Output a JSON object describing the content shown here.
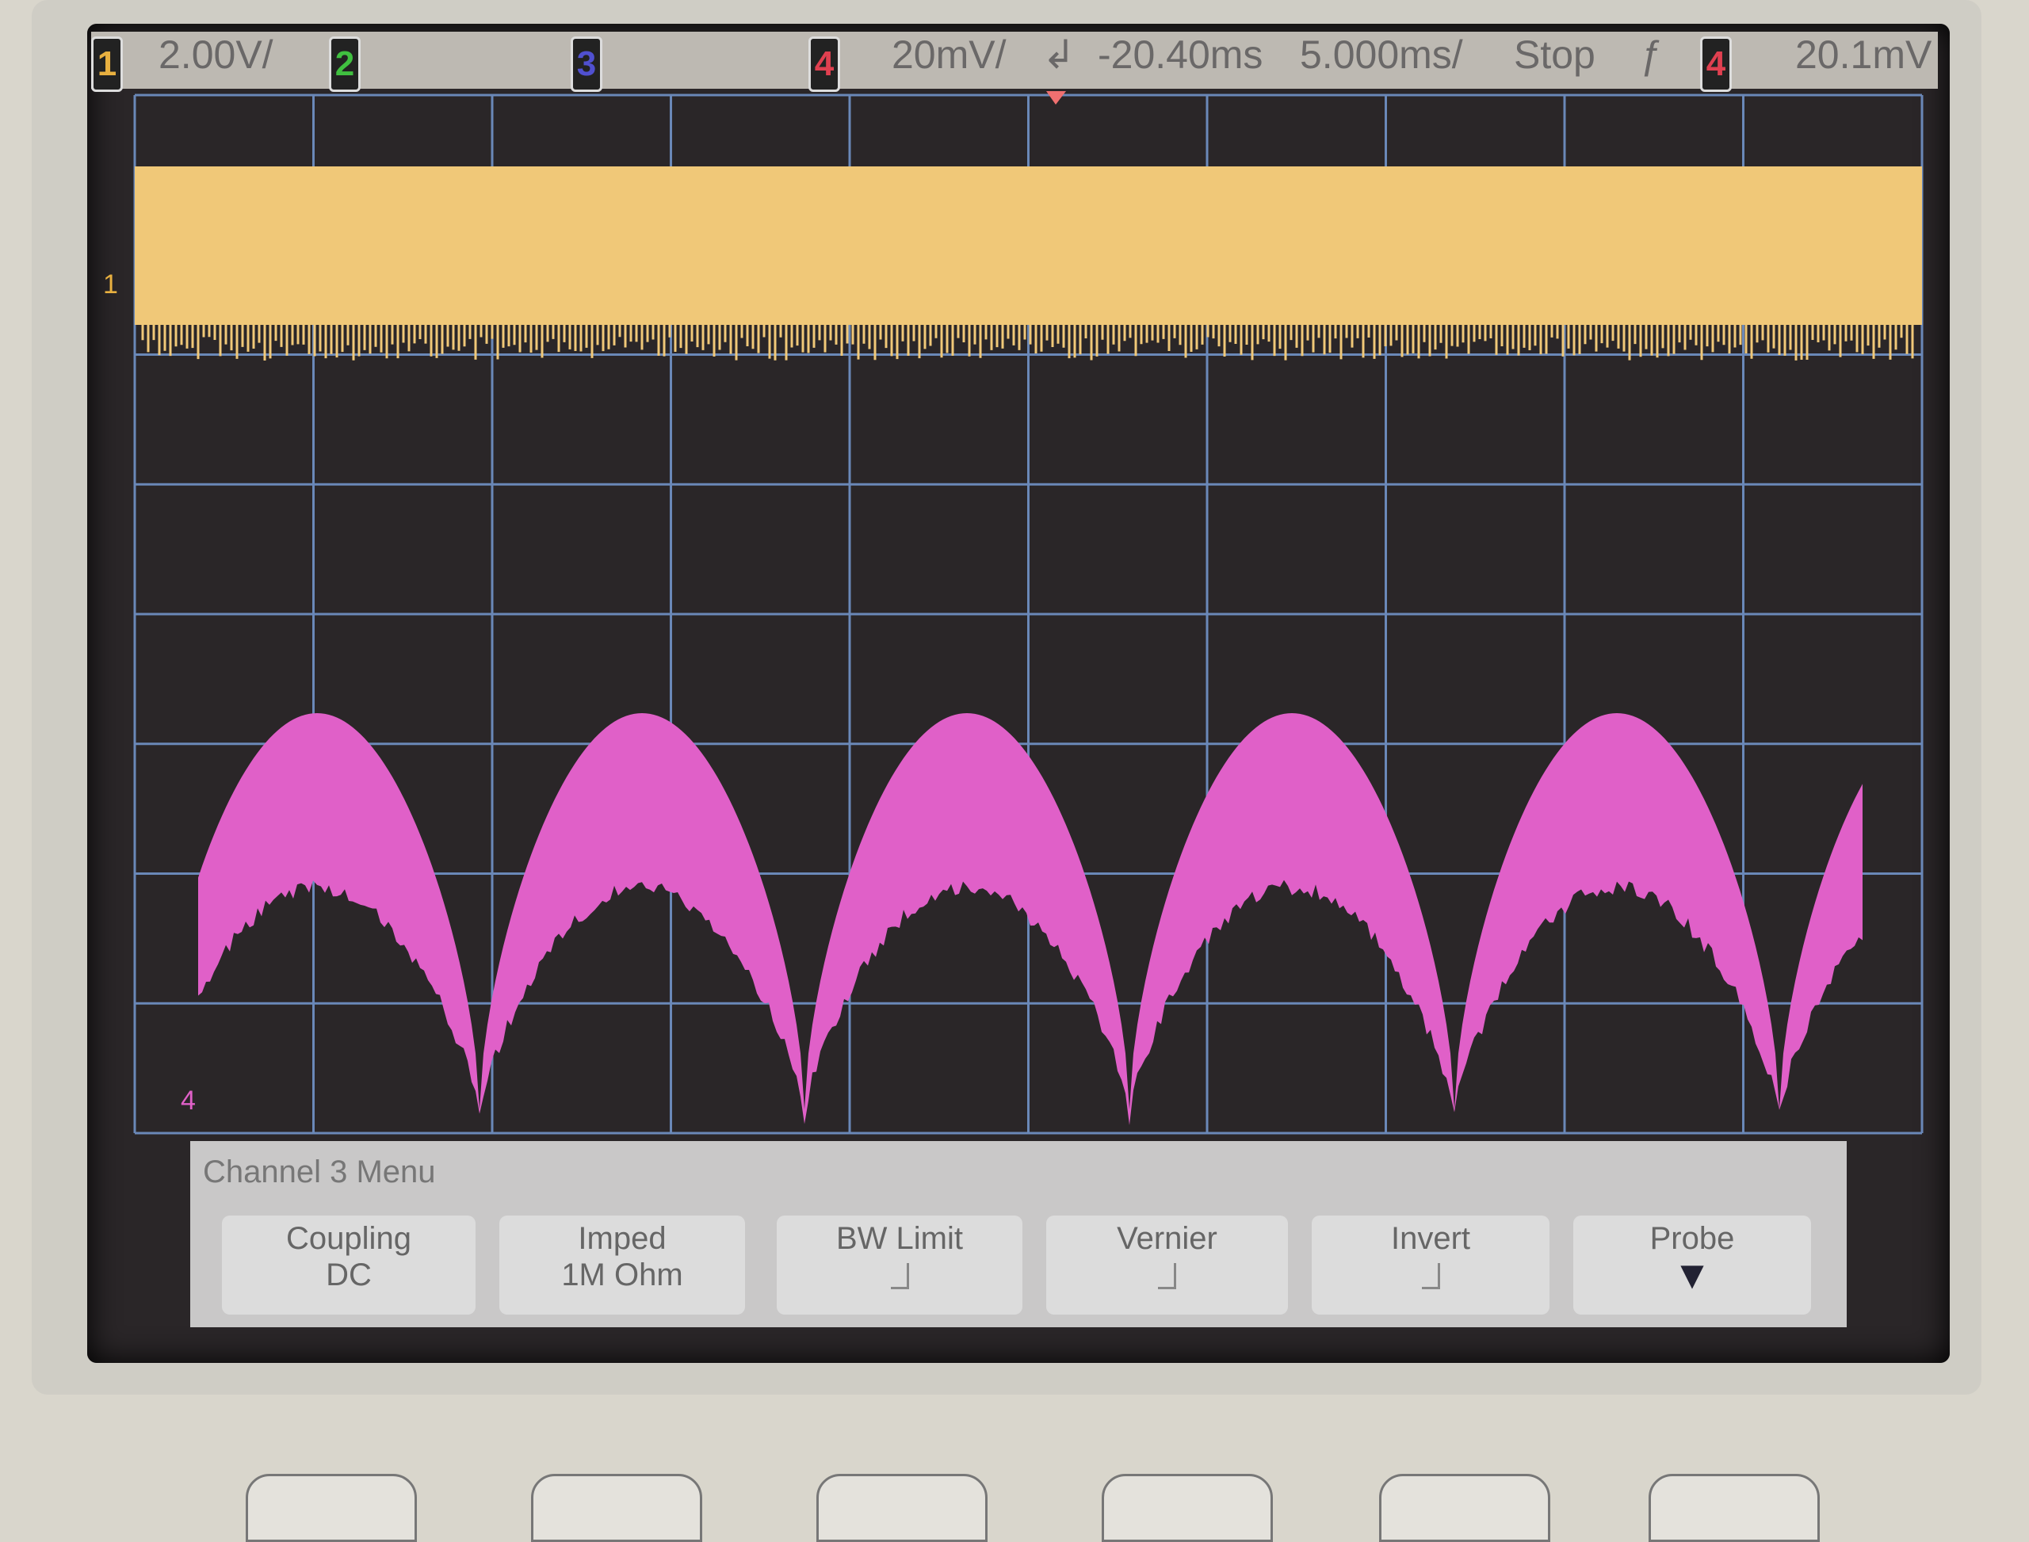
{
  "top_bar": {
    "ch1": {
      "num": "1",
      "scale": "2.00V/",
      "color": "#e8b040"
    },
    "ch2": {
      "num": "2",
      "color": "#40c040"
    },
    "ch3": {
      "num": "3",
      "color": "#5050d0"
    },
    "ch4": {
      "num": "4",
      "scale": "20mV/",
      "color": "#e04050"
    },
    "trigger_delay": "-20.40ms",
    "timebase": "5.000ms/",
    "run_state": "Stop",
    "trigger_source": "4",
    "trigger_level": "20.1mV"
  },
  "traces": {
    "ch1_color": "#f0c878",
    "ch4_color": "#e060c8",
    "grid_color": "#6a88b8"
  },
  "markers": {
    "ch1": "1",
    "ch4": "4"
  },
  "menu": {
    "title": "Channel 3  Menu",
    "buttons": [
      {
        "label": "Coupling",
        "value": "DC"
      },
      {
        "label": "Imped",
        "value": "1M Ohm"
      },
      {
        "label": "BW Limit",
        "checked": false
      },
      {
        "label": "Vernier",
        "checked": false
      },
      {
        "label": "Invert",
        "checked": false
      },
      {
        "label": "Probe",
        "icon": "arrow-down-icon"
      }
    ]
  }
}
